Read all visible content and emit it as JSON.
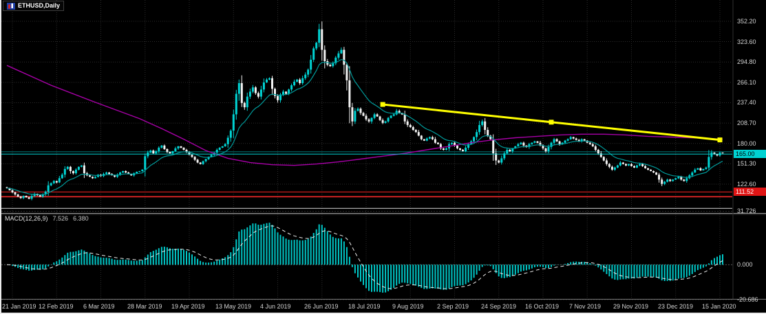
{
  "window": {
    "title": "ETHUSD,Daily"
  },
  "colors": {
    "background": "#000000",
    "grid": "#2d2d2d",
    "bull_candle": "#00d4d4",
    "bear_candle": "#f2f2f2",
    "fast_ma": "#009b9b",
    "slow_ma": "#a800a8",
    "trendline": "#ffff00",
    "current_price_line": "#00d2d2",
    "current_badge_bg": "#00d2d2",
    "current_badge_text": "#000000",
    "alert_line": "#ff2222",
    "alert_badge_bg": "#e01515",
    "alert_badge_text": "#ffffff",
    "axis_text": "#d4d4d4",
    "macd_histogram": "#00c8c8",
    "macd_signal": "#efefef"
  },
  "indicator": {
    "label": "MACD(12,26,9)",
    "value_main": "7.526",
    "value_signal": "6.380"
  },
  "price_markers": {
    "current": "165.00",
    "alert": "111.52"
  },
  "chart_data": {
    "type": "candlestick",
    "title": "ETHUSD, Daily",
    "x_axis": {
      "labels": [
        "21 Jan 2019",
        "12 Feb 2019",
        "6 Mar 2019",
        "28 Mar 2019",
        "19 Apr 2019",
        "13 May 2019",
        "4 Jun 2019",
        "26 Jun 2019",
        "18 Jul 2019",
        "9 Aug 2019",
        "2 Sep 2019",
        "24 Sep 2019",
        "16 Oct 2019",
        "7 Nov 2019",
        "29 Nov 2019",
        "23 Dec 2019",
        "15 Jan 2020"
      ],
      "first_label_bar": 2,
      "bars_per_label": 16
    },
    "y_axis": {
      "side": "right",
      "labels": [
        "352.20",
        "323.60",
        "294.80",
        "266.10",
        "237.40",
        "208.70",
        "180.00",
        "151.30",
        "122.60"
      ]
    },
    "series": {
      "name": "ETHUSD close",
      "closes": [
        117,
        114,
        111,
        108,
        105,
        103,
        106,
        104,
        102,
        106,
        109,
        107,
        105,
        108,
        112,
        121,
        124,
        127,
        125,
        131,
        136,
        144,
        147,
        141,
        138,
        143,
        147,
        149,
        138,
        135,
        133,
        131,
        133,
        136,
        134,
        137,
        139,
        137,
        135,
        133,
        136,
        139,
        141,
        139,
        137,
        135,
        138,
        140,
        141,
        143,
        162,
        167,
        170,
        166,
        169,
        174,
        177,
        172,
        168,
        166,
        169,
        173,
        176,
        174,
        171,
        168,
        164,
        161,
        157,
        153,
        151,
        155,
        158,
        161,
        164,
        167,
        171,
        174,
        176,
        179,
        188,
        198,
        221,
        250,
        265,
        237,
        231,
        246,
        253,
        259,
        251,
        246,
        256,
        266,
        270,
        272,
        257,
        247,
        241,
        249,
        253,
        250,
        256,
        262,
        267,
        270,
        265,
        272,
        277,
        284,
        298,
        314,
        322,
        341,
        312,
        296,
        291,
        289,
        293,
        301,
        307,
        312,
        291,
        269,
        231,
        211,
        226,
        229,
        223,
        219,
        214,
        211,
        216,
        221,
        218,
        213,
        209,
        211,
        216,
        219,
        221,
        226,
        223,
        221,
        211,
        206,
        203,
        199,
        196,
        191,
        186,
        184,
        187,
        189,
        186,
        181,
        179,
        173,
        171,
        173,
        179,
        181,
        177,
        173,
        171,
        169,
        174,
        179,
        183,
        189,
        196,
        206,
        211,
        199,
        191,
        186,
        166,
        156,
        153,
        159,
        166,
        171,
        169,
        173,
        176,
        179,
        181,
        177,
        175,
        179,
        181,
        183,
        181,
        177,
        173,
        169,
        175,
        181,
        186,
        183,
        179,
        181,
        184,
        186,
        189,
        187,
        185,
        183,
        186,
        184,
        181,
        179,
        176,
        171,
        166,
        161,
        156,
        151,
        147,
        143,
        146,
        149,
        153,
        151,
        149,
        151,
        148,
        146,
        149,
        151,
        148,
        145,
        143,
        141,
        139,
        136,
        129,
        123,
        126,
        129,
        127,
        129,
        131,
        133,
        129,
        127,
        131,
        135,
        139,
        143,
        145,
        142,
        144,
        146,
        161,
        167,
        165,
        163,
        167,
        166
      ]
    },
    "overlays": {
      "sma_slow": {
        "color": "#a800a8",
        "points": [
          [
            0,
            290
          ],
          [
            16,
            262
          ],
          [
            32,
            238
          ],
          [
            48,
            215
          ],
          [
            56,
            201
          ],
          [
            64,
            186
          ],
          [
            72,
            170
          ],
          [
            80,
            159
          ],
          [
            88,
            153
          ],
          [
            96,
            150
          ],
          [
            104,
            149
          ],
          [
            112,
            151
          ],
          [
            120,
            154
          ],
          [
            128,
            158
          ],
          [
            136,
            162
          ],
          [
            144,
            166
          ],
          [
            152,
            171
          ],
          [
            160,
            176
          ],
          [
            168,
            181
          ],
          [
            176,
            185
          ],
          [
            184,
            188
          ],
          [
            192,
            190
          ],
          [
            200,
            192
          ],
          [
            208,
            193
          ],
          [
            216,
            193
          ],
          [
            224,
            192
          ],
          [
            232,
            190
          ],
          [
            240,
            189
          ],
          [
            248,
            188
          ],
          [
            259,
            186
          ]
        ]
      },
      "ema_fast": {
        "color": "#009b9b",
        "period": 13
      },
      "trendline": {
        "color": "#ffff00",
        "from": [
          136,
          235
        ],
        "to": [
          258,
          185
        ],
        "width": 3
      },
      "hlines": [
        {
          "price": 168.2,
          "color": "#007e7e",
          "width": 1
        },
        {
          "price": 165.0,
          "color": "#00d2d2",
          "width": 1,
          "badge": "current"
        },
        {
          "price": 111.52,
          "color": "#ff2222",
          "width": 1,
          "badge": "alert"
        },
        {
          "price": 105.0,
          "color": "#cc2222",
          "width": 2
        },
        {
          "price": 88.5,
          "color": "#d8d8d8",
          "width": 1
        }
      ]
    },
    "indicator_pane": {
      "type": "macd",
      "params": [
        12,
        26,
        9
      ],
      "current_macd": 7.526,
      "current_signal": 6.38,
      "axis_labels": [
        "31.726",
        "0.000",
        "-20.686"
      ]
    }
  }
}
